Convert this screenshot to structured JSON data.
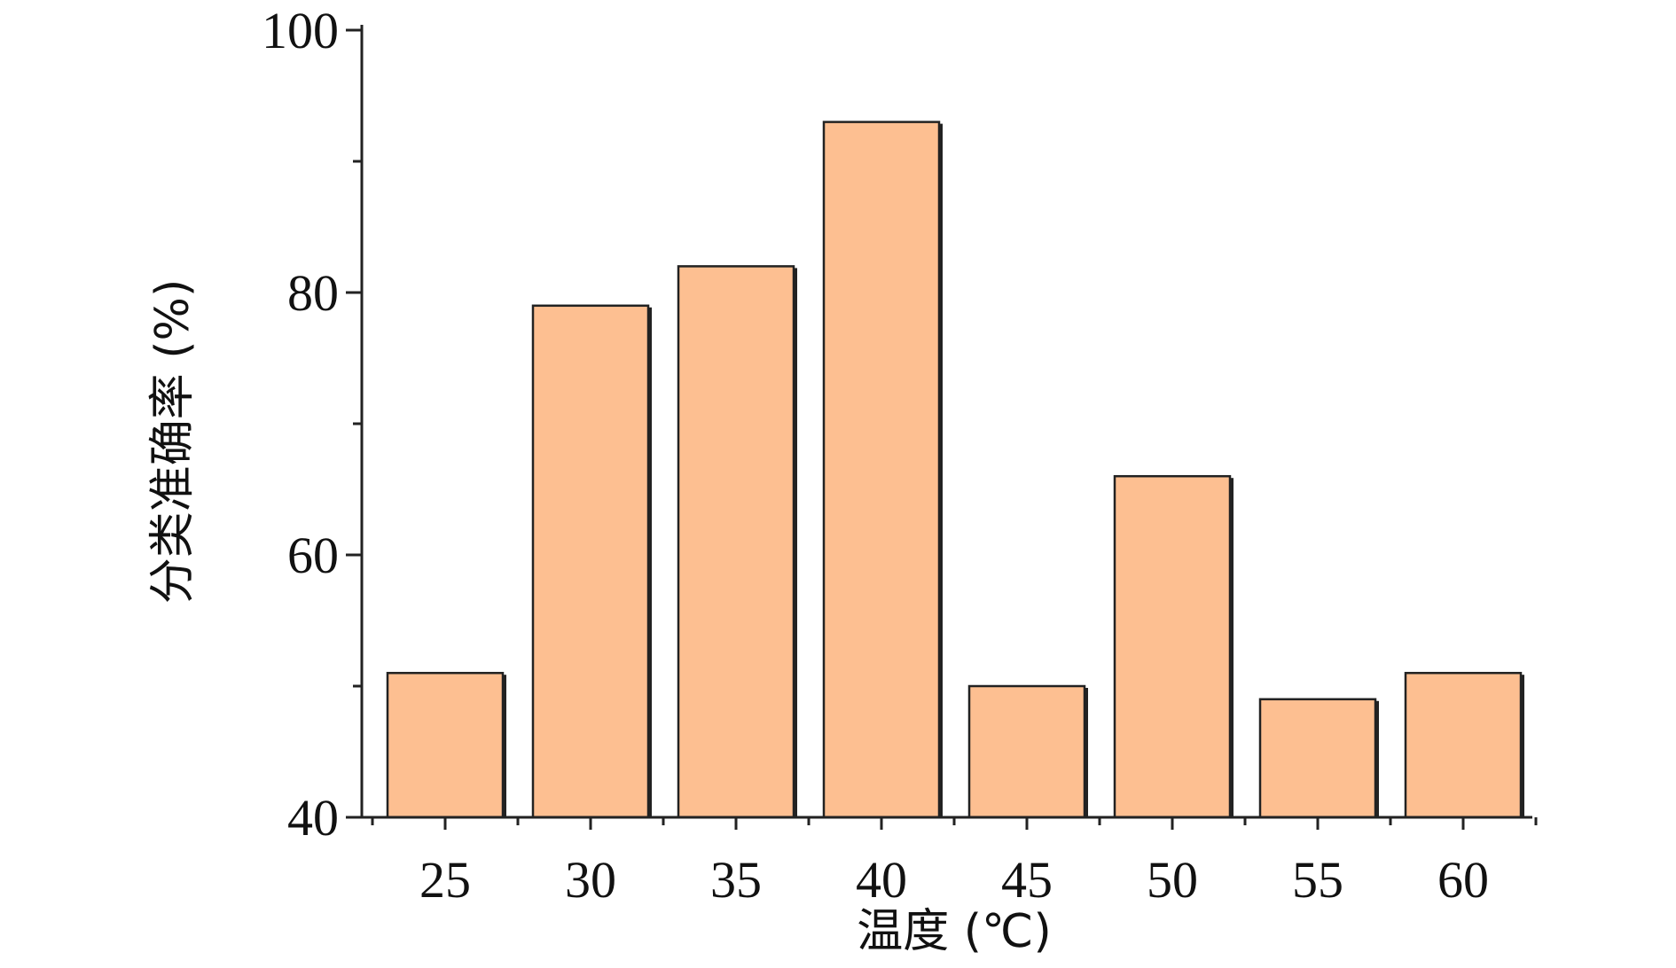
{
  "chart_data": {
    "type": "bar",
    "title": "",
    "xlabel": "温度 (℃)",
    "ylabel": "分类准确率 (%)",
    "categories": [
      "25",
      "30",
      "35",
      "40",
      "45",
      "50",
      "55",
      "60"
    ],
    "values": [
      51,
      79,
      82,
      93,
      50,
      66,
      49,
      51
    ],
    "ylim": [
      40,
      100
    ],
    "y_ticks": [
      40,
      60,
      80,
      100
    ],
    "y_tick_labels": [
      "40",
      "60",
      "80",
      "100"
    ],
    "y_minor_ticks": [
      50,
      70,
      90
    ],
    "grid": false,
    "legend": "none",
    "bar_color": "#FDBF91",
    "bar_edge_color": "#222222",
    "axis_color": "#222222"
  }
}
